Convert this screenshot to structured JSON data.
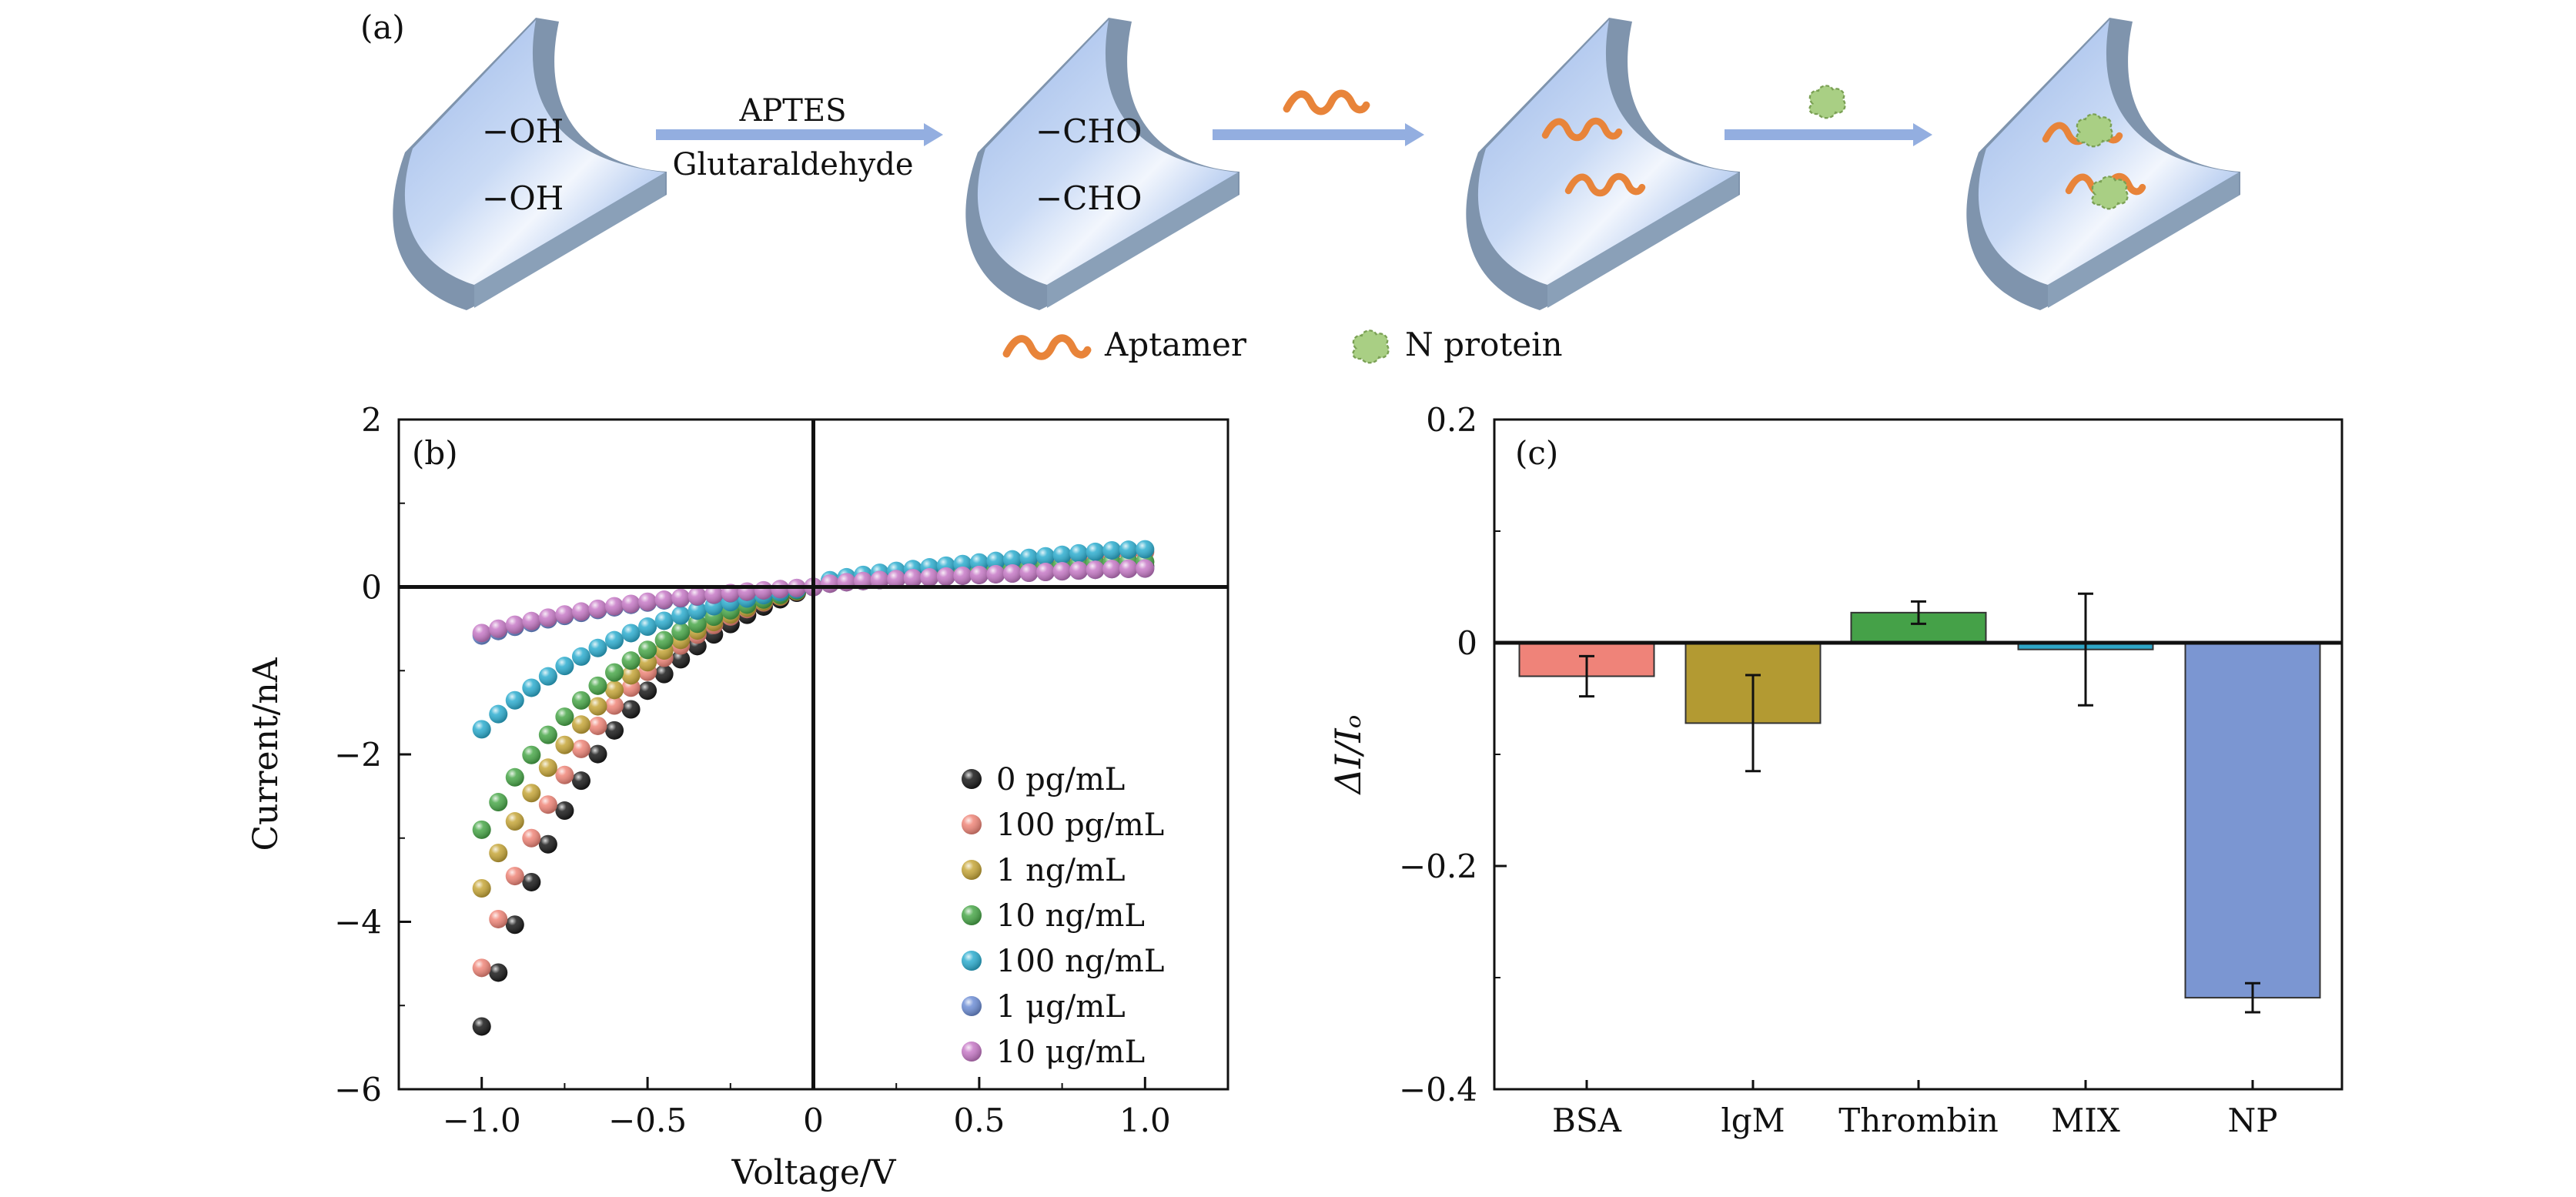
{
  "panel_a": {
    "label": "(a)",
    "groups_step1": [
      "−OH",
      "−OH"
    ],
    "groups_step2": [
      "−CHO",
      "−CHO"
    ],
    "arrow1_top": "APTES",
    "arrow1_bottom": "Glutaraldehyde",
    "legend_aptamer": "Aptamer",
    "legend_nprotein": "N protein",
    "colors": {
      "channel": "#a9c2ea",
      "rim": "#7f94ad",
      "arrow": "#93aee0",
      "aptamer": "#e8843a",
      "protein": "#a9cf84"
    }
  },
  "chart_data": [
    {
      "type": "scatter",
      "panel_label": "(b)",
      "xlabel": "Voltage/V",
      "ylabel": "Current/nA",
      "xlim": [
        -1.25,
        1.25
      ],
      "ylim": [
        -6,
        2
      ],
      "xticks": [
        -1.0,
        -0.5,
        0,
        0.5,
        1.0
      ],
      "xtick_labels": [
        "−1.0",
        "−0.5",
        "0",
        "0.5",
        "1.0"
      ],
      "yticks": [
        -6,
        -4,
        -2,
        0,
        2
      ],
      "ytick_labels": [
        "−6",
        "−4",
        "−2",
        "0",
        "2"
      ],
      "x": [
        -1.0,
        -0.95,
        -0.9,
        -0.85,
        -0.8,
        -0.75,
        -0.7,
        -0.65,
        -0.6,
        -0.55,
        -0.5,
        -0.45,
        -0.4,
        -0.35,
        -0.3,
        -0.25,
        -0.2,
        -0.15,
        -0.1,
        -0.05,
        0.0,
        0.05,
        0.1,
        0.15,
        0.2,
        0.25,
        0.3,
        0.35,
        0.4,
        0.45,
        0.5,
        0.55,
        0.6,
        0.65,
        0.7,
        0.75,
        0.8,
        0.85,
        0.9,
        0.95,
        1.0
      ],
      "legend_position": "lower-right",
      "series": [
        {
          "name": "0 pg/mL",
          "color": "#1a1a1a",
          "y_at_minus1": -5.25,
          "y_at_plus1": 0.25,
          "k": 2.35
        },
        {
          "name": "100 pg/mL",
          "color": "#f0877a",
          "y_at_minus1": -4.55,
          "y_at_plus1": 0.42,
          "k": 2.5
        },
        {
          "name": "1 ng/mL",
          "color": "#c7a73a",
          "y_at_minus1": -3.6,
          "y_at_plus1": 0.3,
          "k": 2.2
        },
        {
          "name": "10 ng/mL",
          "color": "#4aa84a",
          "y_at_minus1": -2.9,
          "y_at_plus1": 0.3,
          "k": 2.1
        },
        {
          "name": "100 ng/mL",
          "color": "#2eaed0",
          "y_at_minus1": -1.7,
          "y_at_plus1": 0.45,
          "k": 1.9
        },
        {
          "name": "1 μg/mL",
          "color": "#6f8fd6",
          "y_at_minus1": -0.58,
          "y_at_plus1": 0.22,
          "k": 1.5
        },
        {
          "name": "10 μg/mL",
          "color": "#c77ac7",
          "y_at_minus1": -0.55,
          "y_at_plus1": 0.22,
          "k": 1.5
        }
      ]
    },
    {
      "type": "bar",
      "panel_label": "(c)",
      "ylabel": "ΔI/Iₒ",
      "categories": [
        "BSA",
        "lgM",
        "Thrombin",
        "MIX",
        "NP"
      ],
      "values": [
        -0.03,
        -0.072,
        0.027,
        -0.006,
        -0.318
      ],
      "errors": [
        0.018,
        0.043,
        0.01,
        0.05,
        0.013
      ],
      "colors": [
        "#ef8379",
        "#b39a32",
        "#45a148",
        "#2ea6c8",
        "#7b96d2"
      ],
      "ylim": [
        -0.4,
        0.2
      ],
      "yticks": [
        -0.4,
        -0.2,
        0,
        0.2
      ],
      "ytick_labels": [
        "−0.4",
        "−0.2",
        "0",
        "0.2"
      ]
    }
  ]
}
